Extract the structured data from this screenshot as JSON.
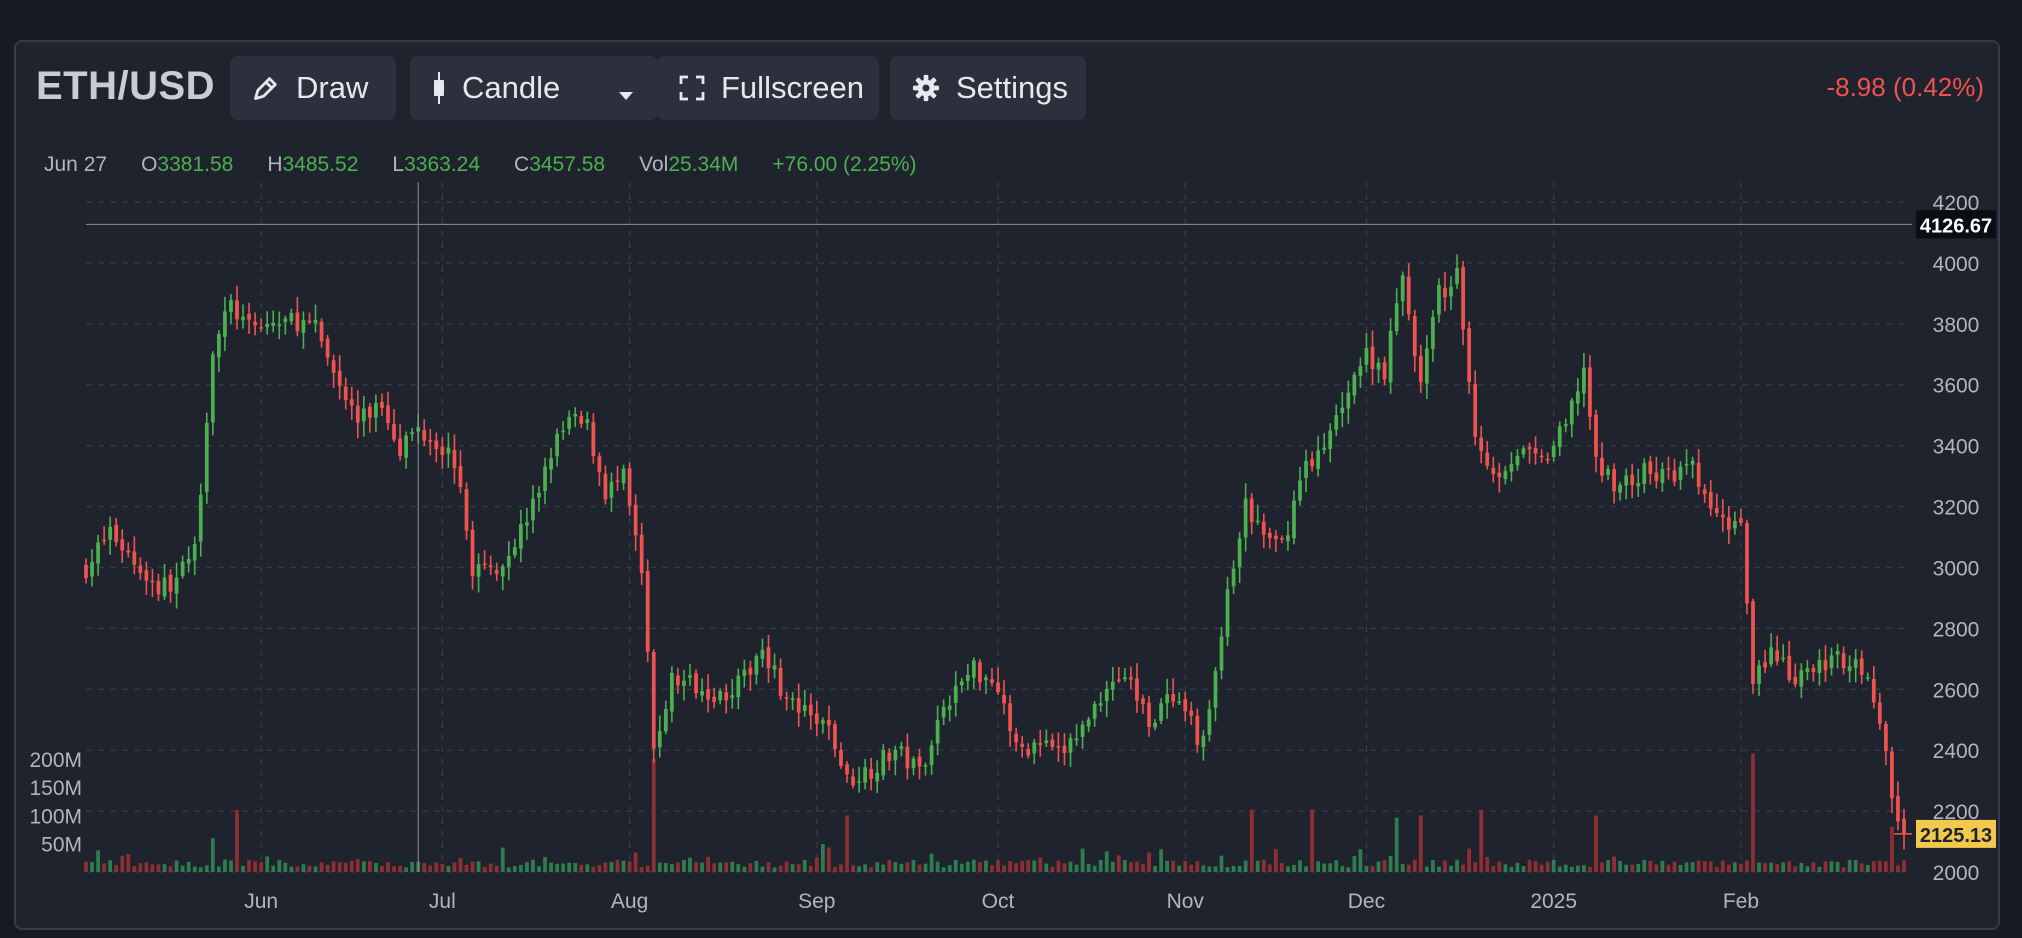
{
  "toolbar": {
    "symbol": "ETH/USD",
    "draw_label": "Draw",
    "chart_type_label": "Candle",
    "fullscreen_label": "Fullscreen",
    "settings_label": "Settings",
    "change_text": "-8.98 (0.42%)",
    "icons": [
      "pencil-icon",
      "candle-icon",
      "caret-down-icon",
      "fullscreen-icon",
      "gear-icon"
    ]
  },
  "legend": {
    "date": "Jun 27",
    "o_label": "O",
    "o_value": "3381.58",
    "h_label": "H",
    "h_value": "3485.52",
    "l_label": "L",
    "l_value": "3363.24",
    "c_label": "C",
    "c_value": "3457.58",
    "vol_label": "Vol",
    "vol_value": "25.34M",
    "change": "+76.00 (2.25%)"
  },
  "colors": {
    "up": "#4caf50",
    "down": "#ef5350",
    "up_volume": "#2e7d4f",
    "down_volume": "#8e2f33",
    "background": "#1f232e",
    "grid": "#363b48",
    "last_price_bg": "#f2c94c",
    "crosshair_price_bg": "#ffffff"
  },
  "chart_data": {
    "type": "candlestick",
    "price_axis": {
      "ticks": [
        2000,
        2200,
        2400,
        2600,
        2800,
        3000,
        3200,
        3400,
        3600,
        3800,
        4000,
        4200
      ],
      "range": [
        2000,
        4200
      ]
    },
    "volume_axis": {
      "ticks": [
        "50M",
        "100M",
        "150M",
        "200M"
      ],
      "tick_values": [
        50,
        100,
        150,
        200
      ],
      "range_m": [
        0,
        200
      ]
    },
    "x_axis": {
      "ticks": [
        "Jun",
        "Jul",
        "Aug",
        "Sep",
        "Oct",
        "Nov",
        "Dec",
        "2025",
        "Feb"
      ],
      "tick_dates": [
        "2024-06-01",
        "2024-07-01",
        "2024-08-01",
        "2024-09-01",
        "2024-10-01",
        "2024-11-01",
        "2024-12-01",
        "2025-01-01",
        "2025-02-01"
      ],
      "range": [
        "2024-05-03",
        "2025-02-28"
      ]
    },
    "crosshair": {
      "date": "2024-06-27",
      "price": "4126.67",
      "price_value": 4126.67
    },
    "last_price": {
      "label": "2125.13",
      "value": 2125.13
    },
    "close_anchors": [
      [
        "2024-05-03",
        3000
      ],
      [
        "2024-05-07",
        3120
      ],
      [
        "2024-05-11",
        3020
      ],
      [
        "2024-05-15",
        2930
      ],
      [
        "2024-05-18",
        2960
      ],
      [
        "2024-05-21",
        3050
      ],
      [
        "2024-05-24",
        3720
      ],
      [
        "2024-05-27",
        3860
      ],
      [
        "2024-05-30",
        3780
      ],
      [
        "2024-06-03",
        3800
      ],
      [
        "2024-06-07",
        3810
      ],
      [
        "2024-06-10",
        3780
      ],
      [
        "2024-06-14",
        3600
      ],
      [
        "2024-06-17",
        3480
      ],
      [
        "2024-06-21",
        3540
      ],
      [
        "2024-06-24",
        3400
      ],
      [
        "2024-06-27",
        3457
      ],
      [
        "2024-06-30",
        3420
      ],
      [
        "2024-07-03",
        3350
      ],
      [
        "2024-07-06",
        3000
      ],
      [
        "2024-07-09",
        2990
      ],
      [
        "2024-07-12",
        3050
      ],
      [
        "2024-07-16",
        3200
      ],
      [
        "2024-07-19",
        3380
      ],
      [
        "2024-07-22",
        3480
      ],
      [
        "2024-07-25",
        3460
      ],
      [
        "2024-07-28",
        3250
      ],
      [
        "2024-07-31",
        3290
      ],
      [
        "2024-08-03",
        2980
      ],
      [
        "2024-08-05",
        2400
      ],
      [
        "2024-08-08",
        2630
      ],
      [
        "2024-08-12",
        2620
      ],
      [
        "2024-08-16",
        2580
      ],
      [
        "2024-08-20",
        2630
      ],
      [
        "2024-08-23",
        2750
      ],
      [
        "2024-08-27",
        2560
      ],
      [
        "2024-08-31",
        2500
      ],
      [
        "2024-09-03",
        2470
      ],
      [
        "2024-09-06",
        2300
      ],
      [
        "2024-09-10",
        2340
      ],
      [
        "2024-09-14",
        2400
      ],
      [
        "2024-09-18",
        2330
      ],
      [
        "2024-09-22",
        2550
      ],
      [
        "2024-09-27",
        2670
      ],
      [
        "2024-10-01",
        2620
      ],
      [
        "2024-10-04",
        2400
      ],
      [
        "2024-10-08",
        2420
      ],
      [
        "2024-10-11",
        2380
      ],
      [
        "2024-10-15",
        2470
      ],
      [
        "2024-10-19",
        2620
      ],
      [
        "2024-10-22",
        2650
      ],
      [
        "2024-10-26",
        2500
      ],
      [
        "2024-10-29",
        2560
      ],
      [
        "2024-11-01",
        2510
      ],
      [
        "2024-11-04",
        2420
      ],
      [
        "2024-11-08",
        2900
      ],
      [
        "2024-11-11",
        3200
      ],
      [
        "2024-11-14",
        3100
      ],
      [
        "2024-11-17",
        3070
      ],
      [
        "2024-11-21",
        3350
      ],
      [
        "2024-11-24",
        3380
      ],
      [
        "2024-11-28",
        3600
      ],
      [
        "2024-12-01",
        3700
      ],
      [
        "2024-12-04",
        3650
      ],
      [
        "2024-12-07",
        3950
      ],
      [
        "2024-12-10",
        3600
      ],
      [
        "2024-12-13",
        3900
      ],
      [
        "2024-12-16",
        3950
      ],
      [
        "2024-12-19",
        3450
      ],
      [
        "2024-12-22",
        3300
      ],
      [
        "2024-12-26",
        3380
      ],
      [
        "2024-12-30",
        3340
      ],
      [
        "2025-01-03",
        3460
      ],
      [
        "2025-01-06",
        3660
      ],
      [
        "2025-01-08",
        3330
      ],
      [
        "2025-01-12",
        3270
      ],
      [
        "2025-01-16",
        3310
      ],
      [
        "2025-01-20",
        3300
      ],
      [
        "2025-01-24",
        3320
      ],
      [
        "2025-01-28",
        3150
      ],
      [
        "2025-02-01",
        3150
      ],
      [
        "2025-02-03",
        2650
      ],
      [
        "2025-02-06",
        2720
      ],
      [
        "2025-02-10",
        2620
      ],
      [
        "2025-02-14",
        2680
      ],
      [
        "2025-02-18",
        2700
      ],
      [
        "2025-02-21",
        2680
      ],
      [
        "2025-02-24",
        2500
      ],
      [
        "2025-02-26",
        2250
      ],
      [
        "2025-02-28",
        2125
      ]
    ],
    "volume_spikes": [
      [
        "2024-05-24",
        60
      ],
      [
        "2024-05-28",
        110
      ],
      [
        "2024-08-05",
        200
      ],
      [
        "2024-09-06",
        100
      ],
      [
        "2024-11-12",
        110
      ],
      [
        "2024-11-22",
        110
      ],
      [
        "2024-12-06",
        90
      ],
      [
        "2024-12-10",
        100
      ],
      [
        "2024-12-20",
        110
      ],
      [
        "2025-01-08",
        100
      ],
      [
        "2025-02-03",
        210
      ],
      [
        "2025-02-26",
        80
      ]
    ]
  }
}
